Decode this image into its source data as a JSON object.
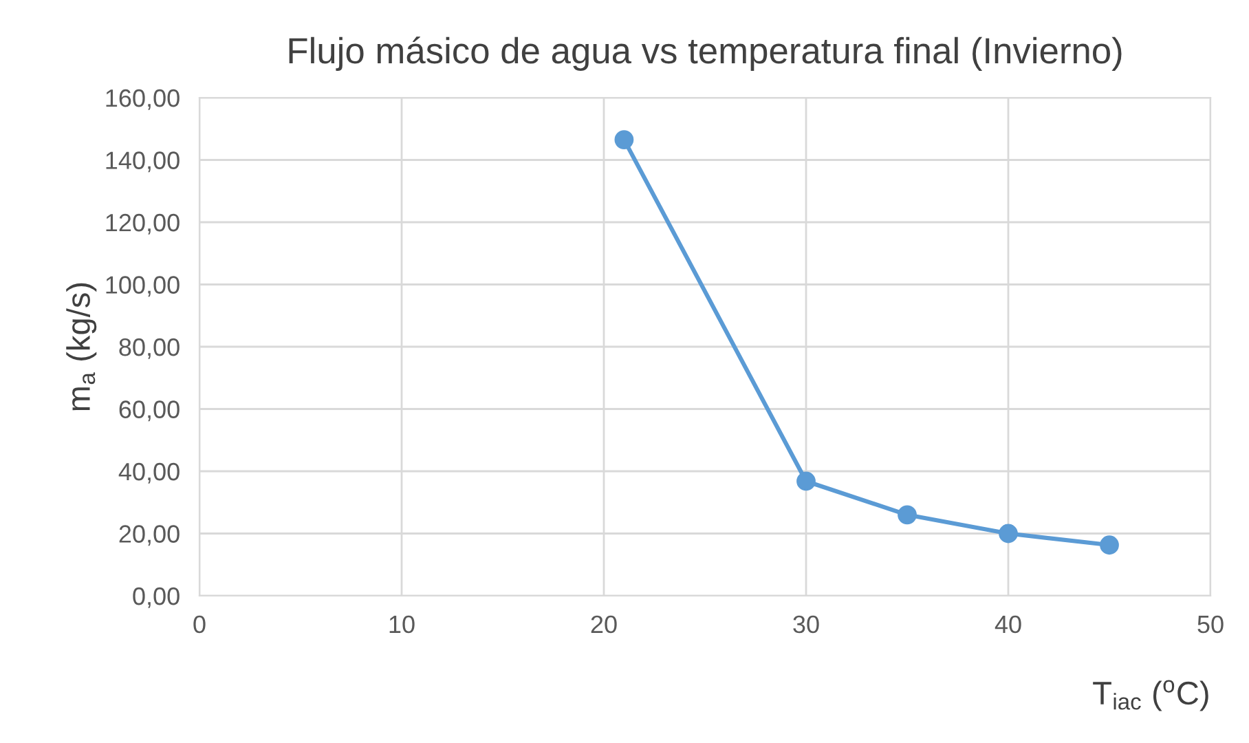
{
  "chart_data": {
    "type": "line",
    "title": "Flujo másico de agua vs temperatura final (Invierno)",
    "xlabel": "T$_{iac}$ ($^{o}$C)",
    "ylabel": "m$_{a}$ (kg/s)",
    "series": [
      {
        "color": "#5b9bd5",
        "x": [
          21,
          30,
          35,
          40,
          45
        ],
        "values": [
          146.5,
          36.8,
          26.0,
          20.0,
          16.3
        ]
      }
    ],
    "marker": "circle",
    "line_style": "solid",
    "grid": true,
    "xlim": [
      0,
      50
    ],
    "xticks": [
      0,
      10,
      20,
      30,
      40,
      50
    ],
    "ylim": [
      0,
      160
    ],
    "yticks": [
      {
        "value": 0,
        "label": "0,00"
      },
      {
        "value": 20,
        "label": "20,00"
      },
      {
        "value": 40,
        "label": "40,00"
      },
      {
        "value": 60,
        "label": "60,00"
      },
      {
        "value": 80,
        "label": "80,00"
      },
      {
        "value": 100,
        "label": "100,00"
      },
      {
        "value": 120,
        "label": "120,00"
      },
      {
        "value": 140,
        "label": "140,00"
      },
      {
        "value": 160,
        "label": "160,00"
      }
    ]
  }
}
